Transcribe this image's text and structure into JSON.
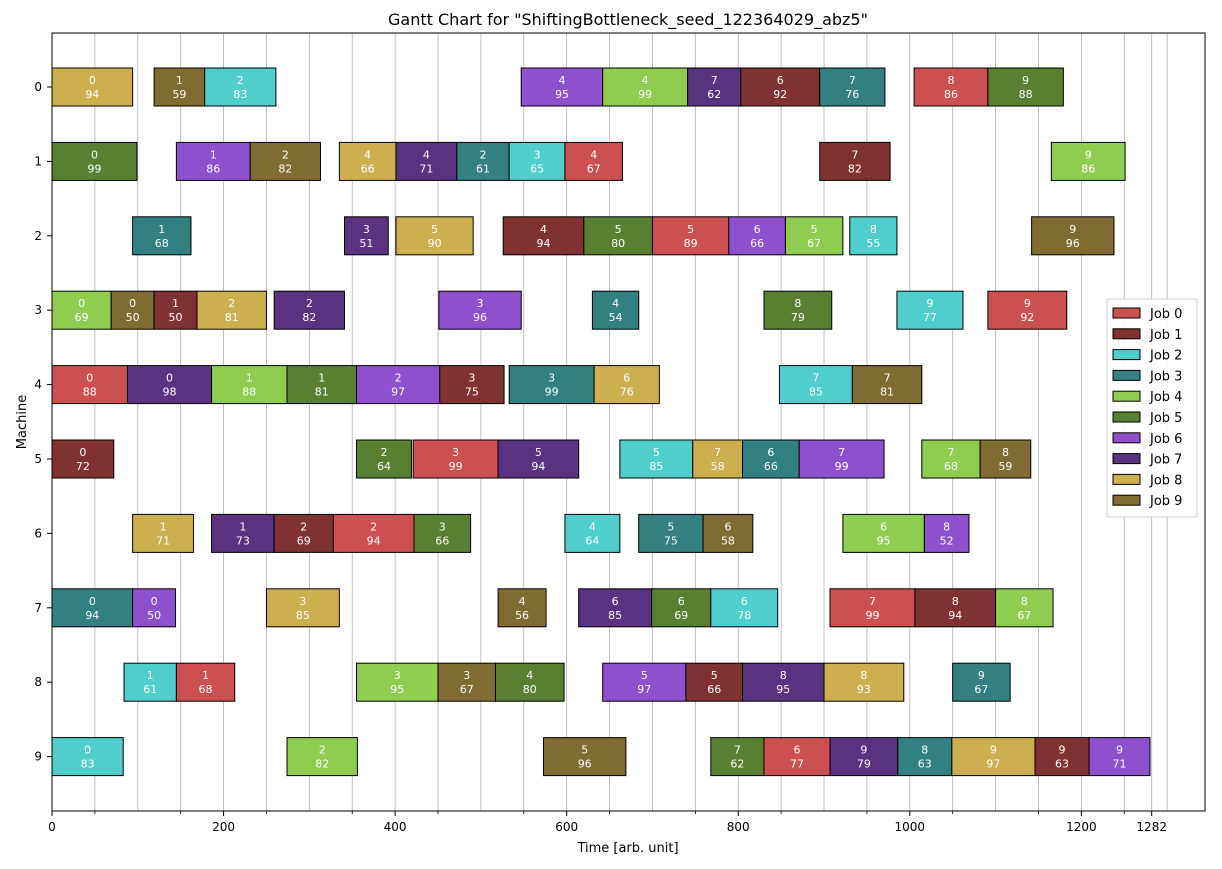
{
  "chart_data": {
    "type": "gantt",
    "title": "Gantt Chart for \"ShiftingBottleneck_seed_122364029_abz5\"",
    "xlabel": "Time [arb. unit]",
    "ylabel": "Machine",
    "xlim": [
      0,
      1345
    ],
    "x_ticks": [
      0,
      200,
      400,
      600,
      800,
      1000,
      1200,
      1282
    ],
    "machines": [
      0,
      1,
      2,
      3,
      4,
      5,
      6,
      7,
      8,
      9
    ],
    "grid": "vertical",
    "legend_position": "right",
    "jobs": [
      {
        "name": "Job 0",
        "color": "#cd5050"
      },
      {
        "name": "Job 1",
        "color": "#803232"
      },
      {
        "name": "Job 2",
        "color": "#50cdcd"
      },
      {
        "name": "Job 3",
        "color": "#328080"
      },
      {
        "name": "Job 4",
        "color": "#8fcd50"
      },
      {
        "name": "Job 5",
        "color": "#598032"
      },
      {
        "name": "Job 6",
        "color": "#8f50cd"
      },
      {
        "name": "Job 7",
        "color": "#593280"
      },
      {
        "name": "Job 8",
        "color": "#cdaf50"
      },
      {
        "name": "Job 9",
        "color": "#806b32"
      }
    ],
    "tasks": [
      {
        "machine": 0,
        "job": 8,
        "op": "0",
        "start": 0,
        "duration": 94
      },
      {
        "machine": 0,
        "job": 9,
        "op": "1",
        "start": 119,
        "duration": 59
      },
      {
        "machine": 0,
        "job": 2,
        "op": "2",
        "start": 178,
        "duration": 83
      },
      {
        "machine": 0,
        "job": 6,
        "op": "4",
        "start": 547,
        "duration": 95
      },
      {
        "machine": 0,
        "job": 4,
        "op": "4",
        "start": 642,
        "duration": 99
      },
      {
        "machine": 0,
        "job": 7,
        "op": "7",
        "start": 741,
        "duration": 62
      },
      {
        "machine": 0,
        "job": 1,
        "op": "6",
        "start": 803,
        "duration": 92
      },
      {
        "machine": 0,
        "job": 3,
        "op": "7",
        "start": 895,
        "duration": 76
      },
      {
        "machine": 0,
        "job": 0,
        "op": "8",
        "start": 1005,
        "duration": 86
      },
      {
        "machine": 0,
        "job": 5,
        "op": "9",
        "start": 1091,
        "duration": 88
      },
      {
        "machine": 1,
        "job": 5,
        "op": "0",
        "start": 0,
        "duration": 99
      },
      {
        "machine": 1,
        "job": 6,
        "op": "1",
        "start": 145,
        "duration": 86
      },
      {
        "machine": 1,
        "job": 9,
        "op": "2",
        "start": 231,
        "duration": 82
      },
      {
        "machine": 1,
        "job": 8,
        "op": "4",
        "start": 335,
        "duration": 66
      },
      {
        "machine": 1,
        "job": 7,
        "op": "4",
        "start": 401,
        "duration": 71
      },
      {
        "machine": 1,
        "job": 3,
        "op": "2",
        "start": 472,
        "duration": 61
      },
      {
        "machine": 1,
        "job": 2,
        "op": "3",
        "start": 533,
        "duration": 65
      },
      {
        "machine": 1,
        "job": 0,
        "op": "4",
        "start": 598,
        "duration": 67
      },
      {
        "machine": 1,
        "job": 1,
        "op": "7",
        "start": 895,
        "duration": 82
      },
      {
        "machine": 1,
        "job": 4,
        "op": "9",
        "start": 1165,
        "duration": 86
      },
      {
        "machine": 2,
        "job": 3,
        "op": "1",
        "start": 94,
        "duration": 68
      },
      {
        "machine": 2,
        "job": 7,
        "op": "3",
        "start": 341,
        "duration": 51
      },
      {
        "machine": 2,
        "job": 8,
        "op": "5",
        "start": 401,
        "duration": 90
      },
      {
        "machine": 2,
        "job": 1,
        "op": "4",
        "start": 526,
        "duration": 94
      },
      {
        "machine": 2,
        "job": 5,
        "op": "5",
        "start": 620,
        "duration": 80
      },
      {
        "machine": 2,
        "job": 0,
        "op": "5",
        "start": 700,
        "duration": 89
      },
      {
        "machine": 2,
        "job": 6,
        "op": "6",
        "start": 789,
        "duration": 66
      },
      {
        "machine": 2,
        "job": 4,
        "op": "5",
        "start": 855,
        "duration": 67
      },
      {
        "machine": 2,
        "job": 2,
        "op": "8",
        "start": 930,
        "duration": 55
      },
      {
        "machine": 2,
        "job": 9,
        "op": "9",
        "start": 1142,
        "duration": 96
      },
      {
        "machine": 3,
        "job": 4,
        "op": "0",
        "start": 0,
        "duration": 69
      },
      {
        "machine": 3,
        "job": 9,
        "op": "0",
        "start": 69,
        "duration": 50
      },
      {
        "machine": 3,
        "job": 1,
        "op": "1",
        "start": 119,
        "duration": 50
      },
      {
        "machine": 3,
        "job": 8,
        "op": "2",
        "start": 169,
        "duration": 81
      },
      {
        "machine": 3,
        "job": 7,
        "op": "2",
        "start": 259,
        "duration": 82
      },
      {
        "machine": 3,
        "job": 6,
        "op": "3",
        "start": 451,
        "duration": 96
      },
      {
        "machine": 3,
        "job": 3,
        "op": "4",
        "start": 630,
        "duration": 54
      },
      {
        "machine": 3,
        "job": 5,
        "op": "8",
        "start": 830,
        "duration": 79
      },
      {
        "machine": 3,
        "job": 2,
        "op": "9",
        "start": 985,
        "duration": 77
      },
      {
        "machine": 3,
        "job": 0,
        "op": "9",
        "start": 1091,
        "duration": 92
      },
      {
        "machine": 4,
        "job": 0,
        "op": "0",
        "start": 0,
        "duration": 88
      },
      {
        "machine": 4,
        "job": 7,
        "op": "0",
        "start": 88,
        "duration": 98
      },
      {
        "machine": 4,
        "job": 4,
        "op": "1",
        "start": 186,
        "duration": 88
      },
      {
        "machine": 4,
        "job": 5,
        "op": "1",
        "start": 274,
        "duration": 81
      },
      {
        "machine": 4,
        "job": 6,
        "op": "2",
        "start": 355,
        "duration": 97
      },
      {
        "machine": 4,
        "job": 1,
        "op": "3",
        "start": 452,
        "duration": 75
      },
      {
        "machine": 4,
        "job": 3,
        "op": "3",
        "start": 533,
        "duration": 99
      },
      {
        "machine": 4,
        "job": 8,
        "op": "6",
        "start": 632,
        "duration": 76
      },
      {
        "machine": 4,
        "job": 2,
        "op": "7",
        "start": 848,
        "duration": 85
      },
      {
        "machine": 4,
        "job": 9,
        "op": "7",
        "start": 933,
        "duration": 81
      },
      {
        "machine": 5,
        "job": 1,
        "op": "0",
        "start": 0,
        "duration": 72
      },
      {
        "machine": 5,
        "job": 5,
        "op": "2",
        "start": 355,
        "duration": 64
      },
      {
        "machine": 5,
        "job": 0,
        "op": "3",
        "start": 421,
        "duration": 99
      },
      {
        "machine": 5,
        "job": 7,
        "op": "5",
        "start": 520,
        "duration": 94
      },
      {
        "machine": 5,
        "job": 2,
        "op": "5",
        "start": 662,
        "duration": 85
      },
      {
        "machine": 5,
        "job": 8,
        "op": "7",
        "start": 747,
        "duration": 58
      },
      {
        "machine": 5,
        "job": 3,
        "op": "6",
        "start": 805,
        "duration": 66
      },
      {
        "machine": 5,
        "job": 6,
        "op": "7",
        "start": 871,
        "duration": 99
      },
      {
        "machine": 5,
        "job": 4,
        "op": "7",
        "start": 1014,
        "duration": 68
      },
      {
        "machine": 5,
        "job": 9,
        "op": "8",
        "start": 1082,
        "duration": 59
      },
      {
        "machine": 6,
        "job": 8,
        "op": "1",
        "start": 94,
        "duration": 71
      },
      {
        "machine": 6,
        "job": 7,
        "op": "1",
        "start": 186,
        "duration": 73
      },
      {
        "machine": 6,
        "job": 1,
        "op": "2",
        "start": 259,
        "duration": 69
      },
      {
        "machine": 6,
        "job": 0,
        "op": "2",
        "start": 328,
        "duration": 94
      },
      {
        "machine": 6,
        "job": 5,
        "op": "3",
        "start": 422,
        "duration": 66
      },
      {
        "machine": 6,
        "job": 2,
        "op": "4",
        "start": 598,
        "duration": 64
      },
      {
        "machine": 6,
        "job": 3,
        "op": "5",
        "start": 684,
        "duration": 75
      },
      {
        "machine": 6,
        "job": 9,
        "op": "6",
        "start": 759,
        "duration": 58
      },
      {
        "machine": 6,
        "job": 4,
        "op": "6",
        "start": 922,
        "duration": 95
      },
      {
        "machine": 6,
        "job": 6,
        "op": "8",
        "start": 1017,
        "duration": 52
      },
      {
        "machine": 7,
        "job": 3,
        "op": "0",
        "start": 0,
        "duration": 94
      },
      {
        "machine": 7,
        "job": 6,
        "op": "0",
        "start": 94,
        "duration": 50
      },
      {
        "machine": 7,
        "job": 8,
        "op": "3",
        "start": 250,
        "duration": 85
      },
      {
        "machine": 7,
        "job": 9,
        "op": "4",
        "start": 520,
        "duration": 56
      },
      {
        "machine": 7,
        "job": 7,
        "op": "6",
        "start": 614,
        "duration": 85
      },
      {
        "machine": 7,
        "job": 5,
        "op": "6",
        "start": 699,
        "duration": 69
      },
      {
        "machine": 7,
        "job": 2,
        "op": "6",
        "start": 768,
        "duration": 78
      },
      {
        "machine": 7,
        "job": 0,
        "op": "7",
        "start": 907,
        "duration": 99
      },
      {
        "machine": 7,
        "job": 1,
        "op": "8",
        "start": 1006,
        "duration": 94
      },
      {
        "machine": 7,
        "job": 4,
        "op": "8",
        "start": 1100,
        "duration": 67
      },
      {
        "machine": 8,
        "job": 2,
        "op": "1",
        "start": 84,
        "duration": 61
      },
      {
        "machine": 8,
        "job": 0,
        "op": "1",
        "start": 145,
        "duration": 68
      },
      {
        "machine": 8,
        "job": 4,
        "op": "3",
        "start": 355,
        "duration": 95
      },
      {
        "machine": 8,
        "job": 9,
        "op": "3",
        "start": 450,
        "duration": 67
      },
      {
        "machine": 8,
        "job": 5,
        "op": "4",
        "start": 517,
        "duration": 80
      },
      {
        "machine": 8,
        "job": 6,
        "op": "5",
        "start": 642,
        "duration": 97
      },
      {
        "machine": 8,
        "job": 1,
        "op": "5",
        "start": 739,
        "duration": 66
      },
      {
        "machine": 8,
        "job": 7,
        "op": "8",
        "start": 805,
        "duration": 95
      },
      {
        "machine": 8,
        "job": 8,
        "op": "8",
        "start": 900,
        "duration": 93
      },
      {
        "machine": 8,
        "job": 3,
        "op": "9",
        "start": 1050,
        "duration": 67
      },
      {
        "machine": 9,
        "job": 2,
        "op": "0",
        "start": 0,
        "duration": 83
      },
      {
        "machine": 9,
        "job": 4,
        "op": "2",
        "start": 274,
        "duration": 82
      },
      {
        "machine": 9,
        "job": 9,
        "op": "5",
        "start": 573,
        "duration": 96
      },
      {
        "machine": 9,
        "job": 5,
        "op": "7",
        "start": 768,
        "duration": 62
      },
      {
        "machine": 9,
        "job": 0,
        "op": "6",
        "start": 830,
        "duration": 77
      },
      {
        "machine": 9,
        "job": 7,
        "op": "9",
        "start": 907,
        "duration": 79
      },
      {
        "machine": 9,
        "job": 3,
        "op": "8",
        "start": 986,
        "duration": 63
      },
      {
        "machine": 9,
        "job": 8,
        "op": "9",
        "start": 1049,
        "duration": 97
      },
      {
        "machine": 9,
        "job": 1,
        "op": "9",
        "start": 1146,
        "duration": 63
      },
      {
        "machine": 9,
        "job": 6,
        "op": "9",
        "start": 1209,
        "duration": 71
      }
    ]
  }
}
